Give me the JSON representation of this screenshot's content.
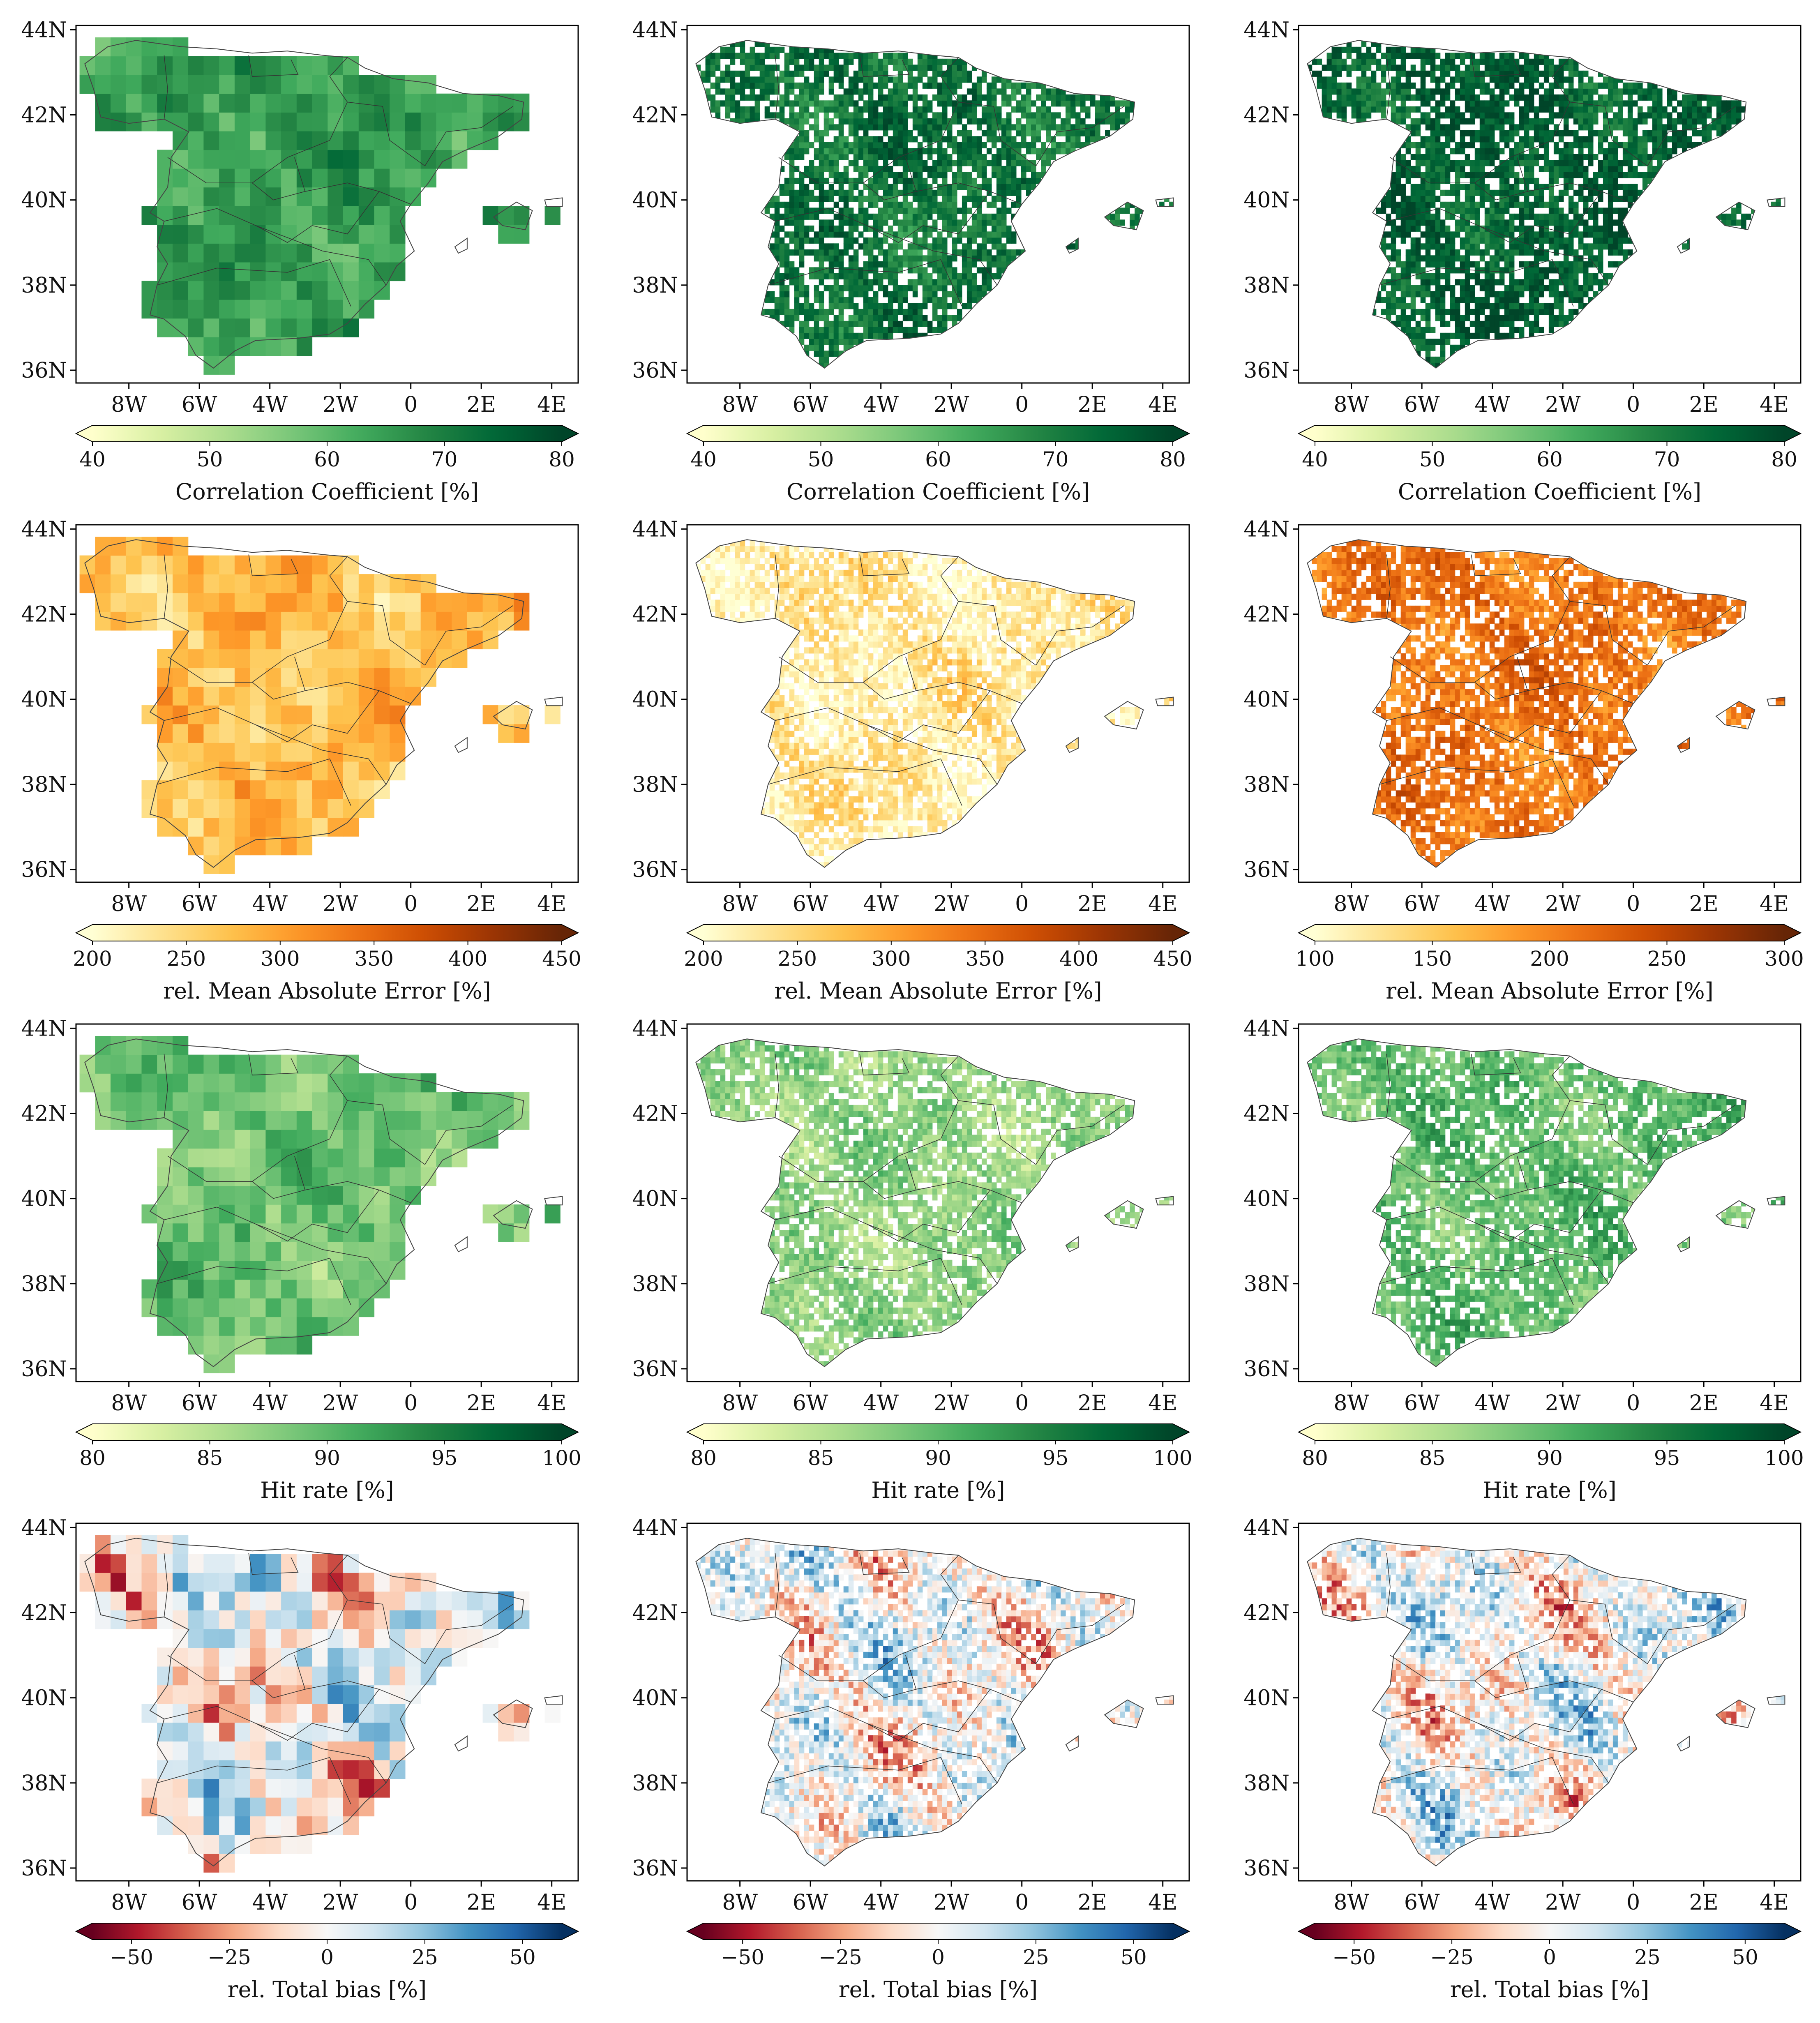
{
  "figure": {
    "lat_labels": [
      "44N",
      "42N",
      "40N",
      "38N",
      "36N"
    ],
    "lon_labels": [
      "8W",
      "6W",
      "4W",
      "2W",
      "0",
      "2E",
      "4E"
    ],
    "rows": [
      {
        "metric": "Correlation Coefficient [%]",
        "colormap": "greens",
        "colorbar_ticks": [
          [
            "40",
            "50",
            "60",
            "70",
            "80"
          ],
          [
            "40",
            "50",
            "60",
            "70",
            "80"
          ],
          [
            "40",
            "50",
            "60",
            "70",
            "80"
          ]
        ],
        "panels": [
          {
            "style": "coarse",
            "level": 0.62,
            "range": "40-80"
          },
          {
            "style": "fine",
            "level": 0.8,
            "range": "40-80"
          },
          {
            "style": "fine",
            "level": 0.88,
            "range": "40-80"
          }
        ]
      },
      {
        "metric": "rel. Mean Absolute Error [%]",
        "colormap": "oranges",
        "colorbar_ticks": [
          [
            "200",
            "250",
            "300",
            "350",
            "400",
            "450"
          ],
          [
            "200",
            "250",
            "300",
            "350",
            "400",
            "450"
          ],
          [
            "100",
            "150",
            "200",
            "250",
            "300"
          ]
        ],
        "panels": [
          {
            "style": "coarse",
            "level": 0.3,
            "range": "200-450"
          },
          {
            "style": "fine",
            "level": 0.12,
            "range": "200-450"
          },
          {
            "style": "fine",
            "level": 0.55,
            "range": "100-300"
          }
        ]
      },
      {
        "metric": "Hit rate [%]",
        "colormap": "greens",
        "colorbar_ticks": [
          [
            "80",
            "85",
            "90",
            "95",
            "100"
          ],
          [
            "80",
            "85",
            "90",
            "95",
            "100"
          ],
          [
            "80",
            "85",
            "90",
            "95",
            "100"
          ]
        ],
        "panels": [
          {
            "style": "coarse",
            "level": 0.45,
            "range": "80-100"
          },
          {
            "style": "fine",
            "level": 0.35,
            "range": "80-100"
          },
          {
            "style": "fine",
            "level": 0.48,
            "range": "80-100"
          }
        ]
      },
      {
        "metric": "rel. Total bias [%]",
        "colormap": "rdbu",
        "colorbar_ticks": [
          [
            "−50",
            "−25",
            "0",
            "25",
            "50"
          ],
          [
            "−50",
            "−25",
            "0",
            "25",
            "50"
          ],
          [
            "−50",
            "−25",
            "0",
            "25",
            "50"
          ]
        ],
        "panels": [
          {
            "style": "coarse",
            "level": 0.5,
            "range": "-60-60"
          },
          {
            "style": "fine",
            "level": 0.5,
            "range": "-60-60"
          },
          {
            "style": "fine",
            "level": 0.5,
            "range": "-60-60"
          }
        ]
      }
    ]
  }
}
